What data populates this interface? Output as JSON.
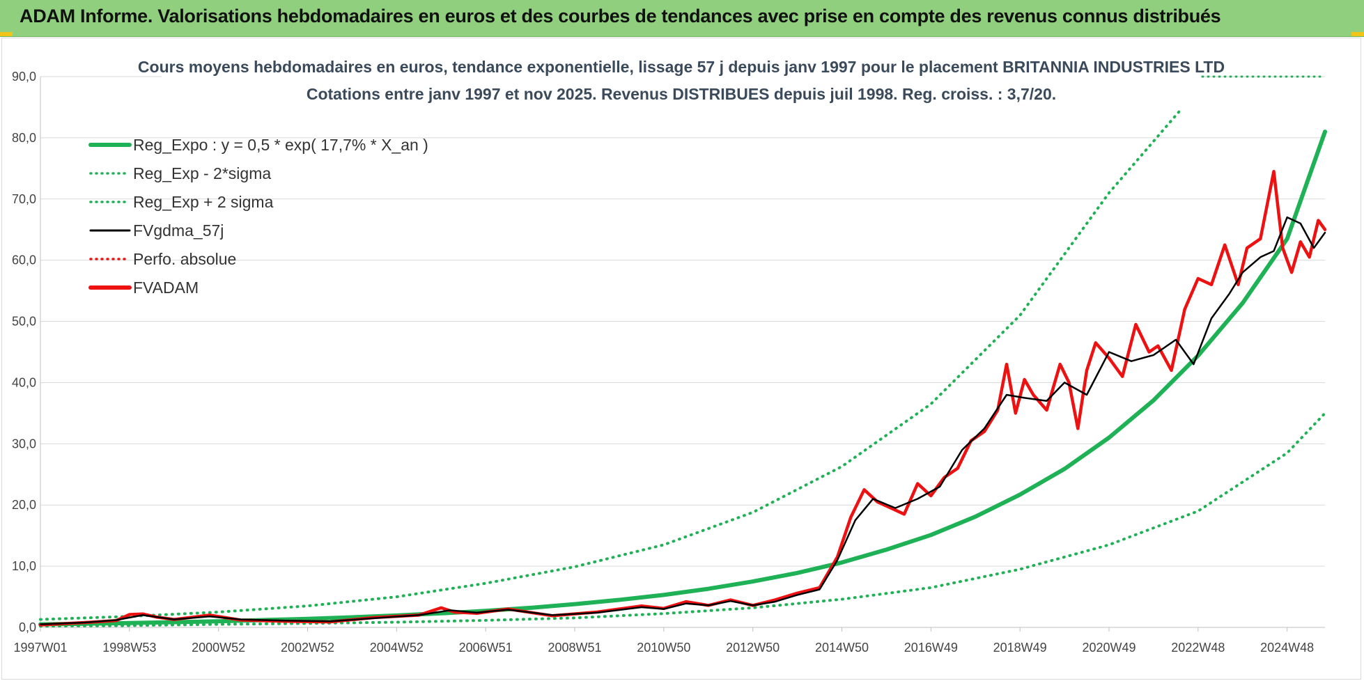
{
  "header": {
    "title": "ADAM Informe. Valorisations hebdomadaires en euros et des courbes de tendances avec prise en compte des revenus connus distribués"
  },
  "colors": {
    "header_bg": "#8fcf7e",
    "trend_green": "#1fb155",
    "series_black": "#000000",
    "series_red": "#ee1111",
    "grid": "#d9d9d9"
  },
  "chart_data": {
    "type": "line",
    "title_line1": "Cours moyens hebdomadaires en euros, tendance exponentielle, lissage 57 j depuis janv 1997 pour le placement BRITANNIA  INDUSTRIES LTD",
    "title_line2": "Cotations entre janv 1997 et nov 2025. Revenus DISTRIBUES depuis juil 1998. Reg. croiss. : 3,7/20.",
    "xlabel": "",
    "ylabel": "",
    "ylim": [
      0,
      90
    ],
    "xlim": [
      1997.0,
      2025.85
    ],
    "y_ticks": [
      "0,0",
      "10,0",
      "20,0",
      "30,0",
      "40,0",
      "50,0",
      "60,0",
      "70,0",
      "80,0",
      "90,0"
    ],
    "x_ticks": [
      {
        "label": "1997W01",
        "x": 1997.0
      },
      {
        "label": "1998W53",
        "x": 1999.0
      },
      {
        "label": "2000W52",
        "x": 2001.0
      },
      {
        "label": "2002W52",
        "x": 2003.0
      },
      {
        "label": "2004W52",
        "x": 2005.0
      },
      {
        "label": "2006W51",
        "x": 2007.0
      },
      {
        "label": "2008W51",
        "x": 2009.0
      },
      {
        "label": "2010W50",
        "x": 2011.0
      },
      {
        "label": "2012W50",
        "x": 2013.0
      },
      {
        "label": "2014W50",
        "x": 2015.0
      },
      {
        "label": "2016W49",
        "x": 2017.0
      },
      {
        "label": "2018W49",
        "x": 2019.0
      },
      {
        "label": "2020W49",
        "x": 2021.0
      },
      {
        "label": "2022W48",
        "x": 2023.0
      },
      {
        "label": "2024W48",
        "x": 2025.0
      }
    ],
    "grid": true,
    "legend_position": "top-left",
    "legend": [
      {
        "label": "Reg_Expo : y = 0,5 * exp( 17,7% *  X_an )",
        "color": "#1fb155",
        "style": "solid-thick"
      },
      {
        "label": "Reg_Exp - 2*sigma",
        "color": "#1fb155",
        "style": "dotted"
      },
      {
        "label": "Reg_Exp + 2 sigma",
        "color": "#1fb155",
        "style": "dotted"
      },
      {
        "label": "FVgdma_57j",
        "color": "#000000",
        "style": "solid"
      },
      {
        "label": "Perfo. absolue",
        "color": "#ee1111",
        "style": "dotted"
      },
      {
        "label": "FVADAM",
        "color": "#ee1111",
        "style": "solid-thick"
      }
    ],
    "series": [
      {
        "name": "Reg_Expo : y = 0,5 * exp( 17,7% *  X_an )",
        "x": [
          1997,
          1998,
          1999,
          2000,
          2001,
          2002,
          2003,
          2004,
          2005,
          2006,
          2007,
          2008,
          2009,
          2010,
          2011,
          2012,
          2013,
          2014,
          2015,
          2016,
          2017,
          2018,
          2019,
          2020,
          2021,
          2022,
          2023,
          2024,
          2025,
          2025.85
        ],
        "y": [
          0.5,
          0.6,
          0.7,
          0.85,
          1.0,
          1.2,
          1.4,
          1.65,
          1.95,
          2.3,
          2.7,
          3.2,
          3.8,
          4.5,
          5.3,
          6.3,
          7.5,
          8.9,
          10.6,
          12.7,
          15.1,
          18.1,
          21.7,
          25.9,
          31.0,
          37.1,
          44.4,
          53.0,
          63.5,
          81.0
        ]
      },
      {
        "name": "Reg_Exp - 2*sigma",
        "x": [
          1997,
          1999,
          2001,
          2003,
          2005,
          2007,
          2009,
          2011,
          2013,
          2015,
          2017,
          2019,
          2021,
          2023,
          2025,
          2025.85
        ],
        "y": [
          0.2,
          0.3,
          0.5,
          0.65,
          0.85,
          1.15,
          1.55,
          2.25,
          3.2,
          4.6,
          6.5,
          9.5,
          13.5,
          19.0,
          28.5,
          35.0
        ]
      },
      {
        "name": "Reg_Exp + 2 sigma",
        "x": [
          1997,
          1999,
          2001,
          2003,
          2005,
          2007,
          2009,
          2011,
          2013,
          2015,
          2017,
          2019,
          2021,
          2022.6
        ],
        "y": [
          1.3,
          1.8,
          2.5,
          3.5,
          5.0,
          7.2,
          9.9,
          13.5,
          18.8,
          26.3,
          36.5,
          51.0,
          71.0,
          84.5
        ]
      },
      {
        "name": "FVgdma_57j",
        "x": [
          1997.0,
          1998.0,
          1998.7,
          1999.3,
          2000.0,
          2000.8,
          2001.5,
          2002.5,
          2003.5,
          2004.5,
          2005.5,
          2006.2,
          2006.8,
          2007.5,
          2008.5,
          2009.5,
          2010.5,
          2011.0,
          2011.5,
          2012.0,
          2012.5,
          2013.0,
          2013.5,
          2014.0,
          2014.5,
          2014.9,
          2015.3,
          2015.7,
          2016.2,
          2016.7,
          2017.2,
          2017.7,
          2018.2,
          2018.7,
          2019.1,
          2019.6,
          2020.0,
          2020.5,
          2021.0,
          2021.5,
          2022.0,
          2022.5,
          2022.9,
          2023.3,
          2023.7,
          2024.0,
          2024.4,
          2024.7,
          2025.0,
          2025.3,
          2025.6,
          2025.85
        ],
        "y": [
          0.5,
          0.8,
          1.2,
          2.0,
          1.3,
          1.8,
          1.3,
          1.1,
          1.0,
          1.5,
          2.0,
          2.8,
          2.4,
          2.9,
          2.0,
          2.4,
          3.3,
          3.0,
          3.9,
          3.6,
          4.3,
          3.6,
          4.2,
          5.3,
          6.2,
          11.0,
          17.5,
          21.0,
          19.5,
          21.0,
          23.0,
          29.0,
          32.5,
          38.0,
          37.5,
          37.0,
          40.0,
          38.0,
          45.0,
          43.5,
          44.5,
          47.0,
          43.0,
          50.5,
          54.5,
          58.0,
          60.5,
          61.5,
          67.0,
          66.0,
          62.0,
          64.5
        ]
      },
      {
        "name": "FVADAM",
        "x": [
          1997.0,
          1998.0,
          1998.7,
          1999.0,
          1999.3,
          1999.6,
          2000.0,
          2000.8,
          2001.5,
          2002.5,
          2003.5,
          2004.5,
          2005.5,
          2006.0,
          2006.3,
          2006.8,
          2007.5,
          2008.5,
          2009.5,
          2010.5,
          2011.0,
          2011.5,
          2012.0,
          2012.5,
          2013.0,
          2013.5,
          2014.0,
          2014.5,
          2014.9,
          2015.2,
          2015.5,
          2015.8,
          2016.1,
          2016.4,
          2016.7,
          2017.0,
          2017.3,
          2017.6,
          2017.9,
          2018.2,
          2018.5,
          2018.7,
          2018.9,
          2019.1,
          2019.3,
          2019.6,
          2019.9,
          2020.1,
          2020.3,
          2020.5,
          2020.7,
          2021.0,
          2021.3,
          2021.6,
          2021.9,
          2022.1,
          2022.4,
          2022.7,
          2023.0,
          2023.3,
          2023.6,
          2023.9,
          2024.1,
          2024.4,
          2024.7,
          2024.9,
          2025.1,
          2025.3,
          2025.5,
          2025.7,
          2025.85
        ],
        "y": [
          0.4,
          0.8,
          1.1,
          2.1,
          2.2,
          1.7,
          1.3,
          2.0,
          1.2,
          1.0,
          0.9,
          1.6,
          2.0,
          3.2,
          2.5,
          2.3,
          3.0,
          1.9,
          2.5,
          3.5,
          3.1,
          4.2,
          3.6,
          4.5,
          3.6,
          4.5,
          5.6,
          6.5,
          11.5,
          18.0,
          22.5,
          20.5,
          19.5,
          18.5,
          23.5,
          21.5,
          24.5,
          26.0,
          30.5,
          32.0,
          35.5,
          43.0,
          35.0,
          40.5,
          38.0,
          35.5,
          43.0,
          40.0,
          32.5,
          42.0,
          46.5,
          44.0,
          41.0,
          49.5,
          45.0,
          46.0,
          42.0,
          52.0,
          57.0,
          56.0,
          62.5,
          56.0,
          62.0,
          63.5,
          74.5,
          62.0,
          58.0,
          63.0,
          60.5,
          66.5,
          65.0
        ]
      }
    ]
  }
}
